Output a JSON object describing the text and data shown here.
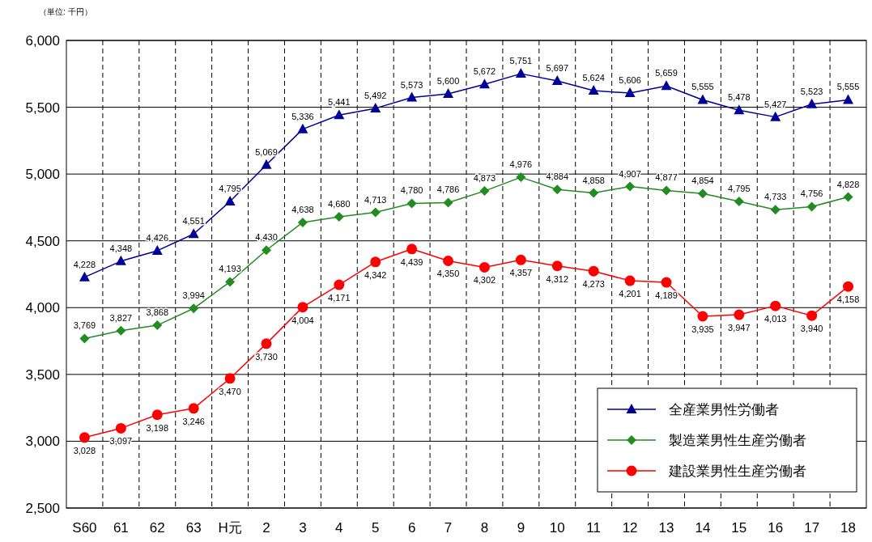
{
  "chart_data": {
    "type": "line",
    "annotations": [
      "（単位: 千円）"
    ],
    "categories": [
      "S60",
      "61",
      "62",
      "63",
      "H元",
      "2",
      "3",
      "4",
      "5",
      "6",
      "7",
      "8",
      "9",
      "10",
      "11",
      "12",
      "13",
      "14",
      "15",
      "16",
      "17",
      "18"
    ],
    "series": [
      {
        "name": "全産業男性労働者",
        "color": "#000099",
        "marker": "triangle",
        "values": [
          4228,
          4348,
          4426,
          4551,
          4795,
          5069,
          5336,
          5441,
          5492,
          5573,
          5600,
          5672,
          5751,
          5697,
          5624,
          5606,
          5659,
          5555,
          5478,
          5427,
          5523,
          5555
        ],
        "value_labels": [
          "4,228",
          "4,348",
          "4,426",
          "4,551",
          "4,795",
          "5,069",
          "5,336",
          "5,441",
          "5,492",
          "5,573",
          "5,600",
          "5,672",
          "5,751",
          "5,697",
          "5,624",
          "5,606",
          "5,659",
          "5,555",
          "5,478",
          "5,427",
          "5,523",
          "5,555"
        ]
      },
      {
        "name": "製造業男性生産労働者",
        "color": "#228b22",
        "marker": "diamond",
        "values": [
          3769,
          3827,
          3868,
          3994,
          4193,
          4430,
          4638,
          4680,
          4713,
          4780,
          4786,
          4873,
          4976,
          4884,
          4858,
          4907,
          4877,
          4854,
          4795,
          4733,
          4756,
          4828
        ],
        "value_labels": [
          "3,769",
          "3,827",
          "3,868",
          "3,994",
          "4,193",
          "4,430",
          "4,638",
          "4,680",
          "4,713",
          "4,780",
          "4,786",
          "4,873",
          "4,976",
          "4,884",
          "4,858",
          "4,907",
          "4,877",
          "4,854",
          "4,795",
          "4,733",
          "4,756",
          "4,828"
        ]
      },
      {
        "name": "建設業男性生産労働者",
        "color": "#ff0000",
        "marker": "circle",
        "values": [
          3028,
          3097,
          3198,
          3246,
          3470,
          3730,
          4004,
          4171,
          4342,
          4439,
          4350,
          4302,
          4357,
          4312,
          4273,
          4201,
          4189,
          3935,
          3947,
          4013,
          3940,
          4158
        ],
        "value_labels": [
          "3,028",
          "3,097",
          "3,198",
          "3,246",
          "3,470",
          "3,730",
          "4,004",
          "4,171",
          "4,342",
          "4,439",
          "4,350",
          "4,302",
          "4,357",
          "4,312",
          "4,273",
          "4,201",
          "4,189",
          "3,935",
          "3,947",
          "4,013",
          "3,940",
          "4,158"
        ]
      }
    ],
    "ylim": [
      2500,
      6000
    ],
    "yticks": [
      {
        "value": 2500,
        "label": "2,500"
      },
      {
        "value": 3000,
        "label": "3,000"
      },
      {
        "value": 3500,
        "label": "3,500"
      },
      {
        "value": 4000,
        "label": "4,000"
      },
      {
        "value": 4500,
        "label": "4,500"
      },
      {
        "value": 5000,
        "label": "5,000"
      },
      {
        "value": 5500,
        "label": "5,500"
      },
      {
        "value": 6000,
        "label": "6,000"
      }
    ],
    "grid": true,
    "legend": "bottom right",
    "line_style": "solid"
  }
}
